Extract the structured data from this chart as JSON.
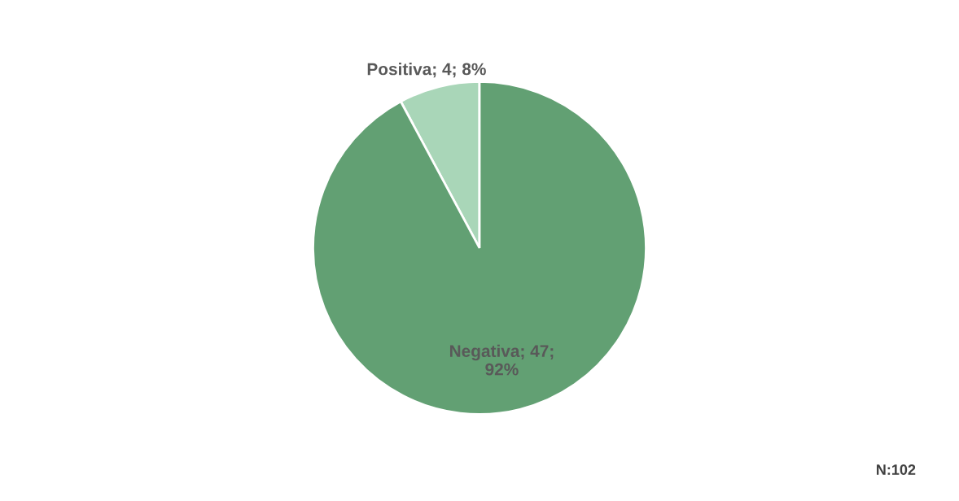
{
  "chart_data": {
    "type": "pie",
    "categories": [
      "Positiva",
      "Negativa"
    ],
    "values": [
      4,
      47
    ],
    "colors": [
      "#a9d6b8",
      "#62a073"
    ],
    "value_labels": [
      "4; 8%",
      "47;\n92%"
    ],
    "annotations": [
      "N:102"
    ],
    "legend": false
  }
}
